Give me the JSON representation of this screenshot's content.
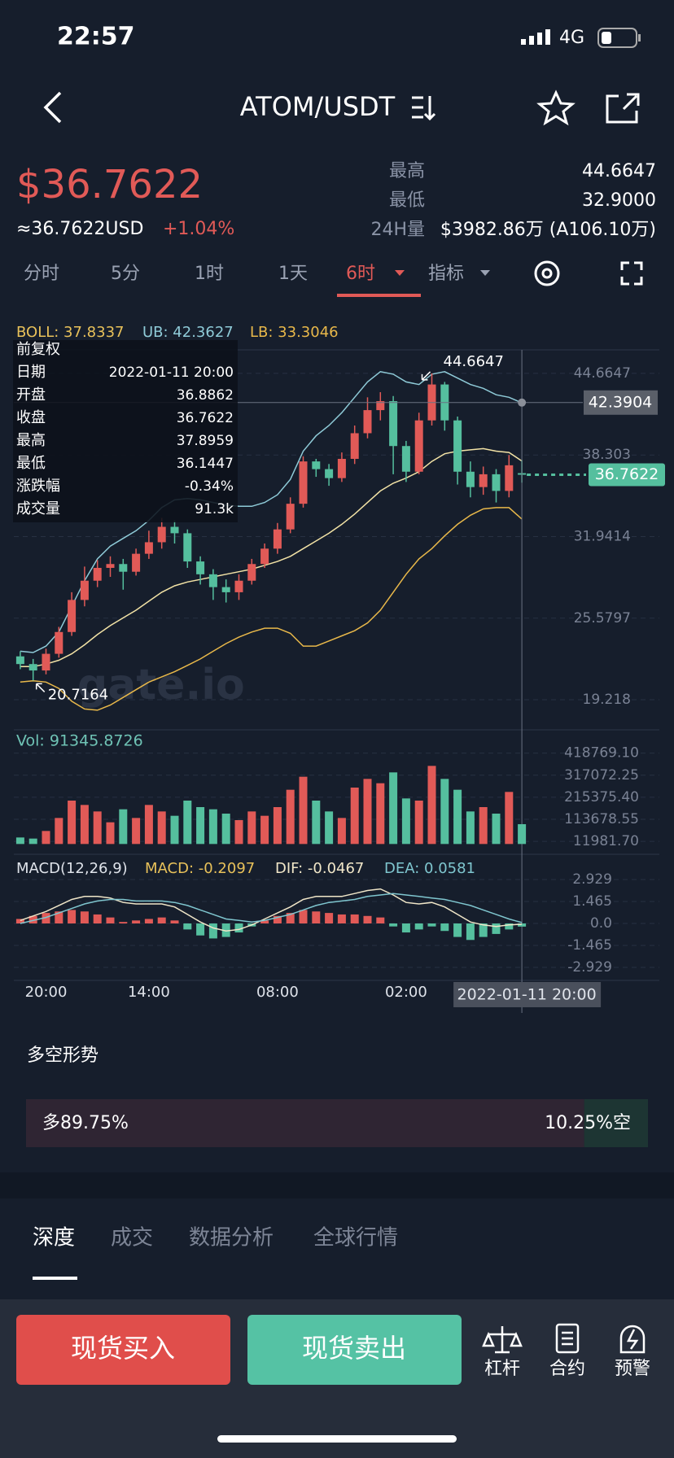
{
  "status_bar": {
    "time": "22:57",
    "network": "4G"
  },
  "header": {
    "pair": "ATOM/USDT"
  },
  "price": {
    "last": "$36.7622",
    "usd": "≈36.7622USD",
    "change": "+1.04%"
  },
  "stats": [
    {
      "label": "最高",
      "value": "44.6647"
    },
    {
      "label": "最低",
      "value": "32.9000"
    },
    {
      "label": "24H量",
      "value": "$3982.86万 (A106.10万)"
    }
  ],
  "intervals": [
    "分时",
    "5分",
    "1时",
    "1天",
    "6时",
    "指标"
  ],
  "chart_data": {
    "type": "candlestick",
    "colors": {
      "up": "#e15a57",
      "down": "#55bf9e"
    },
    "categories": [
      null,
      null,
      "20:00",
      null,
      null,
      null,
      null,
      null,
      null,
      null,
      "14:00",
      null,
      null,
      null,
      null,
      null,
      null,
      null,
      null,
      null,
      "08:00",
      null,
      null,
      null,
      null,
      null,
      null,
      null,
      null,
      null,
      "02:00",
      null,
      null,
      null,
      null,
      null,
      null,
      null,
      null,
      "2022-01-11 20:00"
    ],
    "open": [
      22.6,
      22.0,
      21.5,
      22.8,
      24.5,
      27.0,
      28.5,
      29.5,
      29.8,
      29.2,
      30.6,
      31.5,
      32.7,
      32.2,
      30.0,
      29.0,
      28.0,
      27.6,
      28.5,
      29.8,
      31.0,
      32.5,
      34.5,
      37.8,
      37.2,
      36.5,
      38.0,
      40.0,
      41.8,
      42.5,
      39.0,
      37.0,
      41.0,
      43.8,
      41.0,
      37.0,
      35.8,
      36.8,
      35.5,
      36.8862
    ],
    "close": [
      22.0,
      21.5,
      22.8,
      24.5,
      27.0,
      28.5,
      29.5,
      29.8,
      29.2,
      30.6,
      31.5,
      32.7,
      32.2,
      30.0,
      29.0,
      28.0,
      27.6,
      28.5,
      29.8,
      31.0,
      32.5,
      34.5,
      37.8,
      37.2,
      36.5,
      38.0,
      40.0,
      41.8,
      42.5,
      39.0,
      37.0,
      41.0,
      43.8,
      41.0,
      37.0,
      35.8,
      36.8,
      35.5,
      37.5,
      36.7622
    ],
    "high": [
      23.0,
      22.4,
      23.2,
      24.9,
      27.6,
      29.6,
      30.1,
      30.4,
      30.2,
      31.0,
      32.4,
      33.4,
      33.2,
      32.5,
      30.4,
      29.4,
      28.6,
      29.0,
      30.2,
      31.4,
      33.0,
      35.0,
      38.2,
      38.0,
      37.6,
      38.5,
      40.6,
      42.8,
      43.2,
      42.9,
      39.4,
      41.6,
      44.6647,
      44.0,
      41.3,
      37.8,
      37.4,
      37.2,
      38.3,
      37.8959
    ],
    "low": [
      21.6,
      20.7164,
      21.2,
      22.5,
      24.2,
      26.5,
      28.0,
      28.8,
      27.8,
      28.9,
      30.2,
      31.0,
      31.4,
      29.5,
      28.2,
      27.0,
      26.8,
      27.0,
      28.2,
      29.5,
      30.6,
      32.2,
      34.2,
      36.6,
      35.9,
      36.2,
      37.6,
      39.6,
      41.0,
      36.8,
      36.2,
      36.8,
      40.6,
      40.2,
      36.0,
      35.0,
      35.2,
      34.6,
      35.0,
      36.1447
    ],
    "ylim": [
      17,
      46.5
    ],
    "yticks": [
      44.6647,
      38.303,
      31.9414,
      25.5797,
      19.218
    ],
    "grid": true,
    "boll": {
      "label": "BOLL: 37.8337",
      "upper_label": "UB: 42.3627",
      "lower_label": "LB: 33.3046",
      "mid_color": "#f3e3a6",
      "upper_color": "#8fcbd8",
      "lower_color": "#e8b84a",
      "mid": [
        21.8,
        21.8,
        22.0,
        22.3,
        22.8,
        23.5,
        24.3,
        25.0,
        25.6,
        26.2,
        26.9,
        27.6,
        28.1,
        28.4,
        28.6,
        28.8,
        29.0,
        29.2,
        29.4,
        29.7,
        30.0,
        30.4,
        31.0,
        31.6,
        32.2,
        32.9,
        33.7,
        34.6,
        35.5,
        36.1,
        36.5,
        37.0,
        37.8,
        38.4,
        38.6,
        38.7,
        38.8,
        38.6,
        38.5,
        37.8337
      ],
      "upper": [
        23.0,
        22.9,
        23.4,
        24.5,
        26.5,
        28.5,
        30.2,
        31.2,
        31.8,
        32.4,
        33.2,
        34.2,
        34.8,
        34.9,
        34.8,
        34.6,
        34.4,
        34.3,
        34.3,
        34.6,
        35.2,
        36.4,
        38.6,
        39.8,
        40.6,
        41.6,
        42.8,
        44.0,
        44.8,
        44.6,
        44.0,
        43.8,
        44.6,
        44.8,
        44.3,
        43.8,
        43.5,
        43.0,
        42.8,
        42.3627
      ],
      "lower": [
        20.6,
        20.7,
        20.6,
        20.1,
        19.1,
        18.5,
        18.4,
        18.8,
        19.4,
        20.0,
        20.6,
        21.0,
        21.4,
        21.9,
        22.4,
        23.0,
        23.6,
        24.1,
        24.5,
        24.8,
        24.8,
        24.4,
        23.4,
        23.4,
        23.8,
        24.2,
        24.6,
        25.2,
        26.2,
        27.6,
        29.0,
        30.2,
        31.0,
        32.0,
        32.9,
        33.6,
        34.1,
        34.2,
        34.2,
        33.3046
      ]
    },
    "high_mark": 44.6647,
    "low_mark": 20.7164,
    "crosshair_price": 42.3904,
    "last_price": 36.7622,
    "watermark": "gate.io",
    "info": {
      "title": "前复权",
      "rows": [
        {
          "label": "日期",
          "value": "2022-01-11 20:00"
        },
        {
          "label": "开盘",
          "value": "36.8862"
        },
        {
          "label": "收盘",
          "value": "36.7622"
        },
        {
          "label": "最高",
          "value": "37.8959"
        },
        {
          "label": "最低",
          "value": "36.1447"
        },
        {
          "label": "涨跌幅",
          "value": "-0.34%"
        },
        {
          "label": "成交量",
          "value": "91.3k"
        }
      ]
    },
    "volume": {
      "label": "Vol: 91345.8726",
      "values": [
        30000,
        25000,
        60000,
        120000,
        200000,
        180000,
        150000,
        100000,
        160000,
        120000,
        180000,
        150000,
        130000,
        200000,
        170000,
        160000,
        140000,
        110000,
        150000,
        130000,
        170000,
        250000,
        310000,
        200000,
        150000,
        120000,
        260000,
        300000,
        280000,
        330000,
        210000,
        200000,
        360000,
        300000,
        250000,
        150000,
        170000,
        140000,
        240000,
        91345.8726
      ],
      "ylim": [
        -10000,
        440000
      ],
      "yticks": [
        {
          "value": 418769.1,
          "label": "418769.10"
        },
        317072.25,
        {
          "value": 215375.4,
          "label": "215375.40"
        },
        113678.55,
        {
          "value": 11981.7,
          "label": "11981.70"
        }
      ]
    },
    "macd": {
      "label": "MACD(12,26,9)",
      "macd_label": "MACD: -0.2097",
      "dif_label": "DIF: -0.0467",
      "dea_label": "DEA: 0.0581",
      "dif_color": "#f0e6c8",
      "dea_color": "#7fc6cf",
      "hist": [
        0.3,
        0.5,
        0.7,
        0.8,
        0.9,
        0.8,
        0.6,
        0.4,
        0.1,
        0.2,
        0.3,
        0.4,
        0.2,
        -0.4,
        -0.8,
        -1.0,
        -0.9,
        -0.6,
        -0.2,
        0.2,
        0.5,
        0.7,
        0.9,
        0.8,
        0.7,
        0.6,
        0.6,
        0.5,
        0.4,
        -0.2,
        -0.6,
        -0.4,
        -0.2,
        -0.5,
        -0.9,
        -1.1,
        -0.9,
        -0.7,
        -0.4,
        -0.2097
      ],
      "dif": [
        0.2,
        0.5,
        0.8,
        1.2,
        1.6,
        1.8,
        1.8,
        1.7,
        1.4,
        1.3,
        1.3,
        1.3,
        1.1,
        0.6,
        0.1,
        -0.3,
        -0.5,
        -0.4,
        -0.1,
        0.3,
        0.7,
        1.1,
        1.6,
        1.8,
        1.8,
        1.8,
        2.0,
        2.2,
        2.3,
        1.9,
        1.4,
        1.3,
        1.4,
        1.1,
        0.6,
        0.1,
        -0.1,
        -0.2,
        -0.1,
        -0.0467
      ],
      "dea": [
        0.0,
        0.2,
        0.4,
        0.7,
        1.0,
        1.3,
        1.5,
        1.6,
        1.6,
        1.5,
        1.5,
        1.5,
        1.4,
        1.2,
        0.9,
        0.6,
        0.3,
        0.2,
        0.1,
        0.2,
        0.4,
        0.6,
        0.9,
        1.2,
        1.4,
        1.5,
        1.6,
        1.8,
        1.9,
        2.0,
        1.9,
        1.8,
        1.7,
        1.6,
        1.4,
        1.2,
        0.9,
        0.6,
        0.3,
        0.0581
      ],
      "ylim": [
        -3.3,
        3.3
      ],
      "yticks": [
        2.929,
        1.465,
        {
          "value": 0,
          "label": "0.0"
        },
        -1.465,
        -2.929
      ]
    }
  },
  "long_short": {
    "title": "多空形势",
    "long": {
      "value": 89.75,
      "label": "多89.75%"
    },
    "short": {
      "value": 10.25,
      "label": "10.25%空"
    }
  },
  "tabs": [
    "深度",
    "成交",
    "数据分析",
    "全球行情"
  ],
  "actions": {
    "buy": "现货买入",
    "sell": "现货卖出",
    "icons": [
      "杠杆",
      "合约",
      "预警"
    ]
  }
}
